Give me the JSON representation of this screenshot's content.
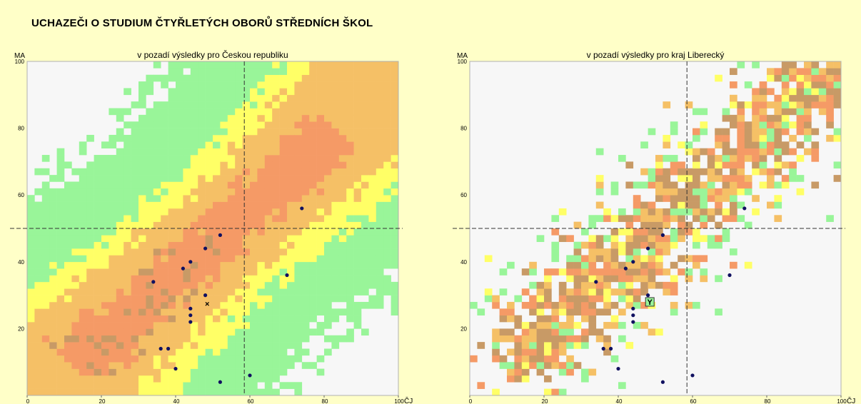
{
  "page": {
    "title": "UCHAZEČI O STUDIUM ČTYŘLETÝCH OBORŮ STŘEDNÍCH ŠKOL"
  },
  "colors": {
    "level1": "#99f599",
    "level2": "#ffff66",
    "level3": "#f5c066",
    "level4": "#f59a66",
    "level5": "#c89a66",
    "empty": "#f7f7f7",
    "point": "#101060"
  },
  "chart_data": [
    {
      "type": "heatmap",
      "title": "v pozadí výsledky pro Českou republiku",
      "xlabel": "ČJ",
      "ylabel": "MA",
      "xlim": [
        0,
        100
      ],
      "ylim": [
        0,
        100
      ],
      "xticks": [
        0,
        20,
        40,
        60,
        80,
        100
      ],
      "yticks": [
        20,
        40,
        60,
        80,
        100
      ],
      "x_threshold": 58.5,
      "y_threshold": 50,
      "background_density": "national",
      "points": [
        [
          52,
          48
        ],
        [
          74,
          56
        ],
        [
          48,
          44
        ],
        [
          44,
          40
        ],
        [
          42,
          38
        ],
        [
          34,
          34
        ],
        [
          70,
          36
        ],
        [
          48,
          30
        ],
        [
          44,
          26
        ],
        [
          44,
          24
        ],
        [
          44,
          22
        ],
        [
          36,
          14
        ],
        [
          38,
          14
        ],
        [
          40,
          8
        ],
        [
          52,
          4
        ],
        [
          60,
          6
        ]
      ],
      "marker": {
        "symbol": "×",
        "x": 48.5,
        "y": 27.5
      }
    },
    {
      "type": "heatmap",
      "title": "v pozadí výsledky pro kraj Liberecký",
      "xlabel": "ČJ",
      "ylabel": "MA",
      "xlim": [
        0,
        100
      ],
      "ylim": [
        0,
        100
      ],
      "xticks": [
        0,
        20,
        40,
        60,
        80,
        100
      ],
      "yticks": [
        20,
        40,
        60,
        80,
        100
      ],
      "x_threshold": 58.5,
      "y_threshold": 50,
      "background_density": "regional",
      "points": [
        [
          52,
          48
        ],
        [
          74,
          56
        ],
        [
          48,
          44
        ],
        [
          44,
          40
        ],
        [
          42,
          38
        ],
        [
          34,
          34
        ],
        [
          70,
          36
        ],
        [
          48,
          30
        ],
        [
          44,
          26
        ],
        [
          44,
          24
        ],
        [
          44,
          22
        ],
        [
          36,
          14
        ],
        [
          38,
          14
        ],
        [
          40,
          8
        ],
        [
          52,
          4
        ],
        [
          60,
          6
        ]
      ],
      "marker": {
        "symbol": "Y",
        "x": 48.5,
        "y": 28
      }
    }
  ]
}
